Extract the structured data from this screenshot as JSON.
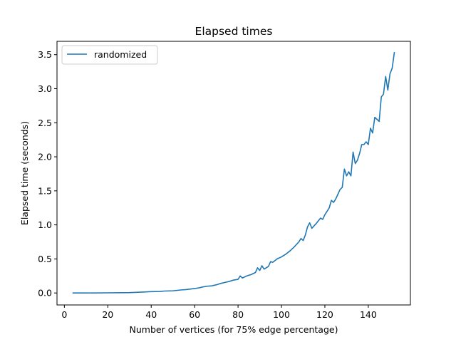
{
  "chart_data": {
    "type": "line",
    "title": "Elapsed times",
    "xlabel": "Number of vertices (for 75% edge percentage)",
    "ylabel": "Elapsed time (seconds)",
    "xlim": [
      -3.4,
      159.4
    ],
    "ylim": [
      -0.176,
      3.696
    ],
    "xticks": [
      0,
      20,
      40,
      60,
      80,
      100,
      120,
      140
    ],
    "xtick_labels": [
      "0",
      "20",
      "40",
      "60",
      "80",
      "100",
      "120",
      "140"
    ],
    "yticks": [
      0.0,
      0.5,
      1.0,
      1.5,
      2.0,
      2.5,
      3.0,
      3.5
    ],
    "ytick_labels": [
      "0.0",
      "0.5",
      "1.0",
      "1.5",
      "2.0",
      "2.5",
      "3.0",
      "3.5"
    ],
    "grid": false,
    "legend": {
      "placement": "top-left",
      "entries": [
        "randomized"
      ]
    },
    "series": [
      {
        "name": "randomized",
        "color": "#1f77b4",
        "x": [
          4,
          10,
          20,
          30,
          35,
          40,
          44,
          46,
          50,
          54,
          56,
          60,
          62,
          64,
          66,
          68,
          70,
          72,
          74,
          76,
          78,
          80,
          81,
          82,
          84,
          86,
          88,
          89,
          90,
          91,
          92,
          94,
          95,
          96,
          98,
          100,
          102,
          104,
          106,
          108,
          109,
          110,
          111,
          112,
          113,
          114,
          116,
          117,
          118,
          119,
          120,
          121,
          122,
          123,
          124,
          125,
          126,
          127,
          128,
          129,
          130,
          131,
          132,
          133,
          134,
          135,
          136,
          137,
          138,
          139,
          140,
          141,
          142,
          143,
          144,
          145,
          146,
          147,
          148,
          149,
          150,
          151,
          152
        ],
        "y": [
          0.0,
          0.0,
          0.002,
          0.005,
          0.012,
          0.02,
          0.022,
          0.028,
          0.032,
          0.045,
          0.05,
          0.065,
          0.075,
          0.09,
          0.1,
          0.105,
          0.12,
          0.14,
          0.155,
          0.17,
          0.19,
          0.2,
          0.25,
          0.22,
          0.25,
          0.27,
          0.3,
          0.37,
          0.33,
          0.4,
          0.35,
          0.39,
          0.46,
          0.45,
          0.5,
          0.53,
          0.57,
          0.62,
          0.68,
          0.75,
          0.8,
          0.77,
          0.85,
          0.97,
          1.03,
          0.95,
          1.02,
          1.06,
          1.1,
          1.08,
          1.15,
          1.2,
          1.25,
          1.36,
          1.33,
          1.38,
          1.45,
          1.52,
          1.55,
          1.82,
          1.72,
          1.78,
          1.72,
          2.07,
          1.9,
          1.95,
          2.05,
          2.18,
          2.18,
          2.22,
          2.18,
          2.42,
          2.35,
          2.58,
          2.55,
          2.52,
          2.88,
          2.92,
          3.18,
          2.98,
          3.22,
          3.3,
          3.53
        ]
      }
    ]
  }
}
